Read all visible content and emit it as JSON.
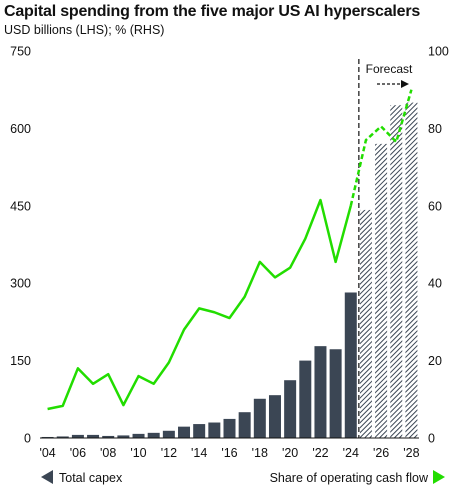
{
  "chart_data": {
    "type": "bar",
    "title": "Capital spending from the five major US AI hyperscalers",
    "subtitle": "USD billions (LHS); % (RHS)",
    "years": [
      2004,
      2005,
      2006,
      2007,
      2008,
      2009,
      2010,
      2011,
      2012,
      2013,
      2014,
      2015,
      2016,
      2017,
      2018,
      2019,
      2020,
      2021,
      2022,
      2023,
      2024,
      2025,
      2026,
      2027,
      2028
    ],
    "x_tick_labels": [
      "'04",
      "'06",
      "'08",
      "'10",
      "'12",
      "'14",
      "'16",
      "'18",
      "'20",
      "'22",
      "'24",
      "'26",
      "'28"
    ],
    "series": [
      {
        "name": "Total capex",
        "axis": "left",
        "mark": "bar",
        "color": "#3b4654",
        "values": [
          2,
          3,
          6,
          6,
          4,
          5,
          8,
          10,
          14,
          22,
          27,
          30,
          37,
          50,
          76,
          83,
          112,
          150,
          178,
          172,
          282,
          442,
          570,
          645,
          650
        ],
        "forecast_from": 2025
      },
      {
        "name": "Share of operating cash flow",
        "axis": "right",
        "mark": "line",
        "color": "#22dd00",
        "values": [
          7.5,
          8.3,
          18,
          14,
          16.5,
          8.5,
          16,
          14,
          19.5,
          28,
          33.5,
          32.5,
          31,
          36.5,
          45.5,
          41.5,
          44,
          51.5,
          61.5,
          45.5,
          60,
          77,
          80.5,
          76.5,
          90
        ],
        "forecast_from": 2024
      }
    ],
    "ylim_left": [
      0,
      750
    ],
    "yticks_left": [
      "0",
      "150",
      "300",
      "450",
      "600",
      "750"
    ],
    "ylim_right": [
      0,
      100
    ],
    "yticks_right": [
      "0",
      "20",
      "40",
      "60",
      "80",
      "100"
    ],
    "forecast_label": "Forecast",
    "legend_position": "bottom",
    "grid": false
  },
  "legend": {
    "capex_label": "Total capex",
    "share_label": "Share of operating cash flow"
  }
}
